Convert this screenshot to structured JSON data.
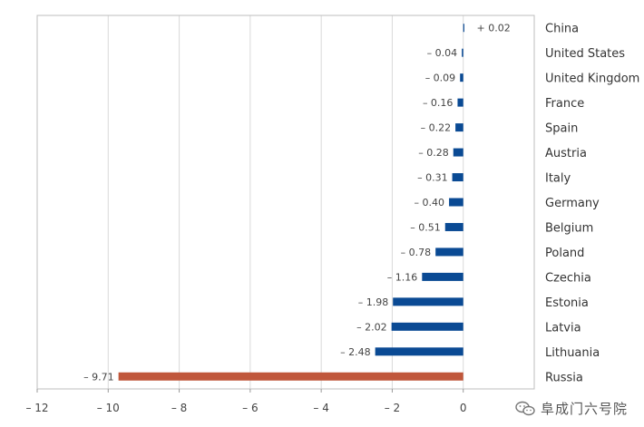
{
  "chart_data": {
    "type": "bar",
    "orientation": "horizontal",
    "categories": [
      "China",
      "United States",
      "United Kingdom",
      "France",
      "Spain",
      "Austria",
      "Italy",
      "Germany",
      "Belgium",
      "Poland",
      "Czechia",
      "Estonia",
      "Latvia",
      "Lithuania",
      "Russia"
    ],
    "values": [
      0.02,
      -0.04,
      -0.09,
      -0.16,
      -0.22,
      -0.28,
      -0.31,
      -0.4,
      -0.51,
      -0.78,
      -1.16,
      -1.98,
      -2.02,
      -2.48,
      -9.71
    ],
    "value_labels": [
      "+ 0.02",
      "– 0.04",
      "– 0.09",
      "– 0.16",
      "– 0.22",
      "– 0.28",
      "– 0.31",
      "– 0.40",
      "– 0.51",
      "– 0.78",
      "– 1.16",
      "– 1.98",
      "– 2.02",
      "– 2.48",
      "– 9.71"
    ],
    "xlim": [
      -12,
      2
    ],
    "xticks": [
      -12,
      -10,
      -8,
      -6,
      -4,
      -2,
      0
    ],
    "xtick_labels": [
      "– 12",
      "– 10",
      "– 8",
      "– 6",
      "– 4",
      "– 2",
      "0"
    ],
    "grid": true,
    "category_axis": "right",
    "colors": {
      "default": "#0a4a94",
      "highlight": "#c0573b"
    },
    "highlight_category": "Russia"
  },
  "watermark": {
    "text": "阜成门六号院",
    "icon": "wechat-icon"
  }
}
